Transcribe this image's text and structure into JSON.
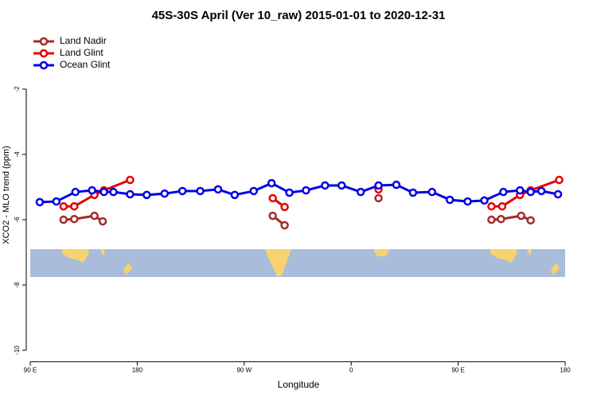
{
  "chart_data": {
    "type": "line",
    "title": "45S-30S April (Ver 10_raw)   2015-01-01 to 2020-12-31",
    "x_label": "Longitude",
    "y_label": "XCO2 - MLO trend (ppm)",
    "xlim": [
      90,
      540
    ],
    "xticks": [
      {
        "value": 90,
        "label": "90 E"
      },
      180,
      {
        "value": 270,
        "label": "90 W"
      },
      {
        "value": 360,
        "label": "0"
      },
      {
        "value": 450,
        "label": "90 E"
      },
      {
        "value": 540,
        "label": "180"
      }
    ],
    "ylim": [
      -10.35,
      -0.2
    ],
    "yticks": [
      -2,
      -4,
      -6,
      -8,
      -10
    ],
    "legend": "top-left",
    "series": [
      {
        "name": "Land Nadir",
        "color": "#a52a2a",
        "x": [
          118,
          127,
          144,
          151,
          null,
          294,
          304,
          null,
          383,
          null,
          478,
          486,
          503,
          511
        ],
        "values": [
          -6.0,
          -5.98,
          -5.88,
          -6.05,
          null,
          -5.88,
          -6.17,
          null,
          -5.34,
          null,
          -6.0,
          -5.98,
          -5.88,
          -6.02
        ]
      },
      {
        "name": "Land Glint",
        "color": "#e60000",
        "x": [
          118,
          127,
          144,
          152,
          174,
          null,
          294,
          304,
          null,
          383,
          null,
          478,
          487,
          502,
          511,
          535
        ],
        "values": [
          -5.59,
          -5.59,
          -5.24,
          -5.1,
          -4.78,
          null,
          -5.34,
          -5.61,
          null,
          -5.07,
          null,
          -5.59,
          -5.59,
          -5.24,
          -5.1,
          -4.78
        ]
      },
      {
        "name": "Ocean Glint",
        "color": "#0000e6",
        "x": [
          98,
          112,
          128,
          142,
          152,
          160,
          174,
          188,
          203,
          218,
          233,
          248,
          262,
          278,
          293,
          308,
          322,
          338,
          352,
          368,
          383,
          398,
          412,
          428,
          443,
          458,
          472,
          488,
          502,
          511,
          520,
          534
        ],
        "values": [
          -5.46,
          -5.44,
          -5.15,
          -5.1,
          -5.15,
          -5.15,
          -5.22,
          -5.24,
          -5.2,
          -5.12,
          -5.12,
          -5.07,
          -5.24,
          -5.12,
          -4.88,
          -5.17,
          -5.1,
          -4.95,
          -4.95,
          -5.15,
          -4.95,
          -4.93,
          -5.17,
          -5.15,
          -5.39,
          -5.44,
          -5.41,
          -5.15,
          -5.1,
          -5.15,
          -5.12,
          -5.22
        ]
      }
    ]
  }
}
